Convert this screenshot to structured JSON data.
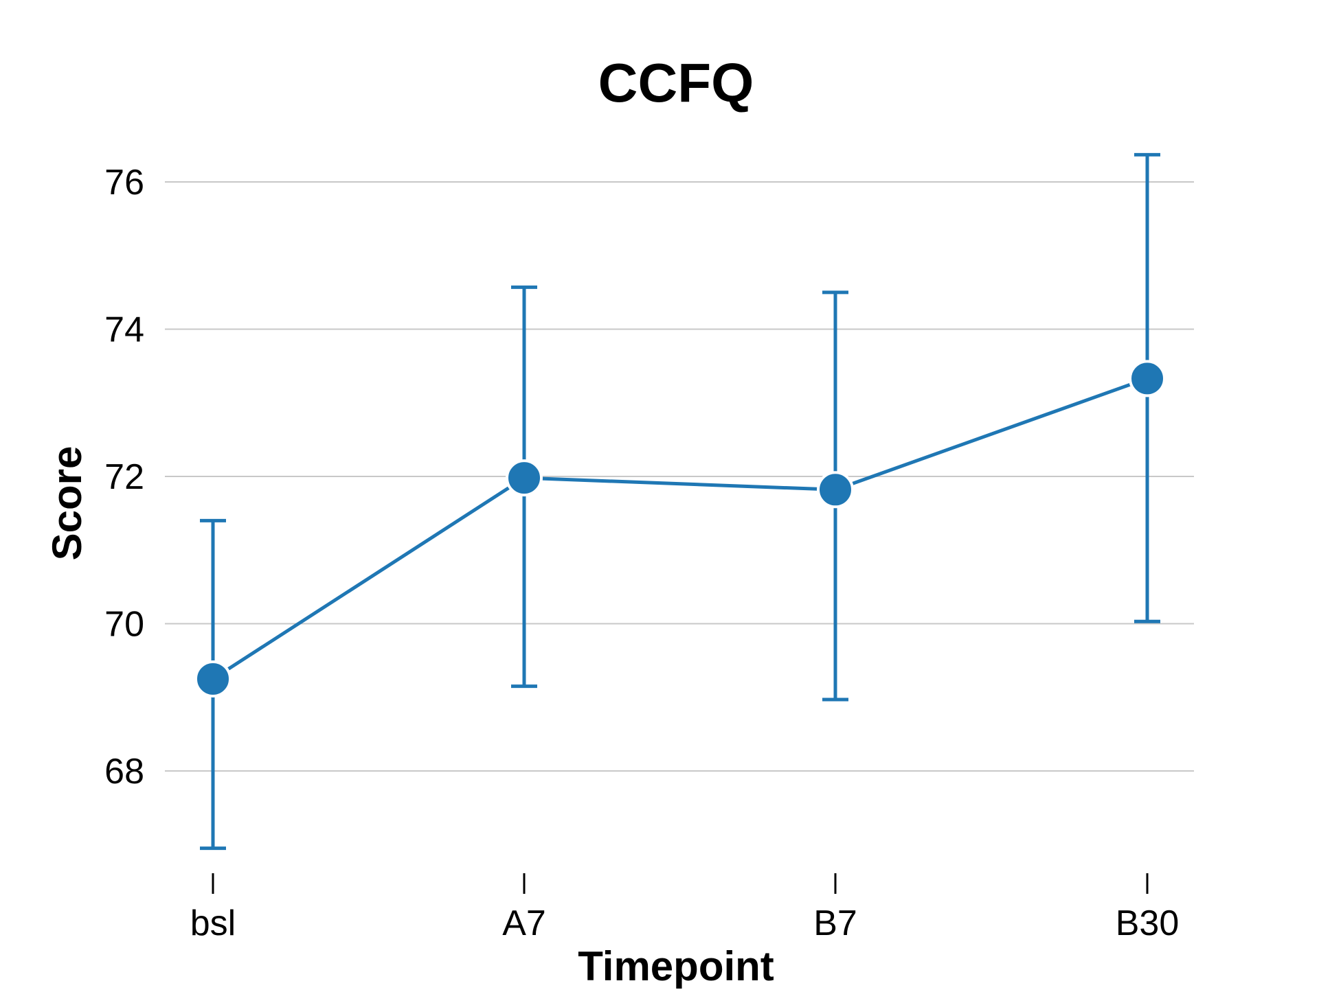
{
  "chart_data": {
    "type": "line",
    "title": "CCFQ",
    "xlabel": "Timepoint",
    "ylabel": "Score",
    "categories": [
      "bsl",
      "A7",
      "B7",
      "B30"
    ],
    "series": [
      {
        "values": [
          69.25,
          71.98,
          71.82,
          73.33
        ],
        "error_low": [
          66.95,
          69.15,
          68.97,
          70.03
        ],
        "error_high": [
          71.4,
          74.57,
          74.5,
          76.37
        ]
      }
    ],
    "yticks": [
      68,
      70,
      72,
      74,
      76
    ],
    "ytick_labels": [
      "68",
      "70",
      "72",
      "74",
      "76"
    ],
    "ylim": [
      66.8,
      76.7
    ],
    "grid": "horizontal",
    "legend": "none"
  },
  "colors": {
    "series": "#1f77b4",
    "grid": "#c8c8c8",
    "marker_edge": "#ffffff",
    "text": "#000000"
  }
}
